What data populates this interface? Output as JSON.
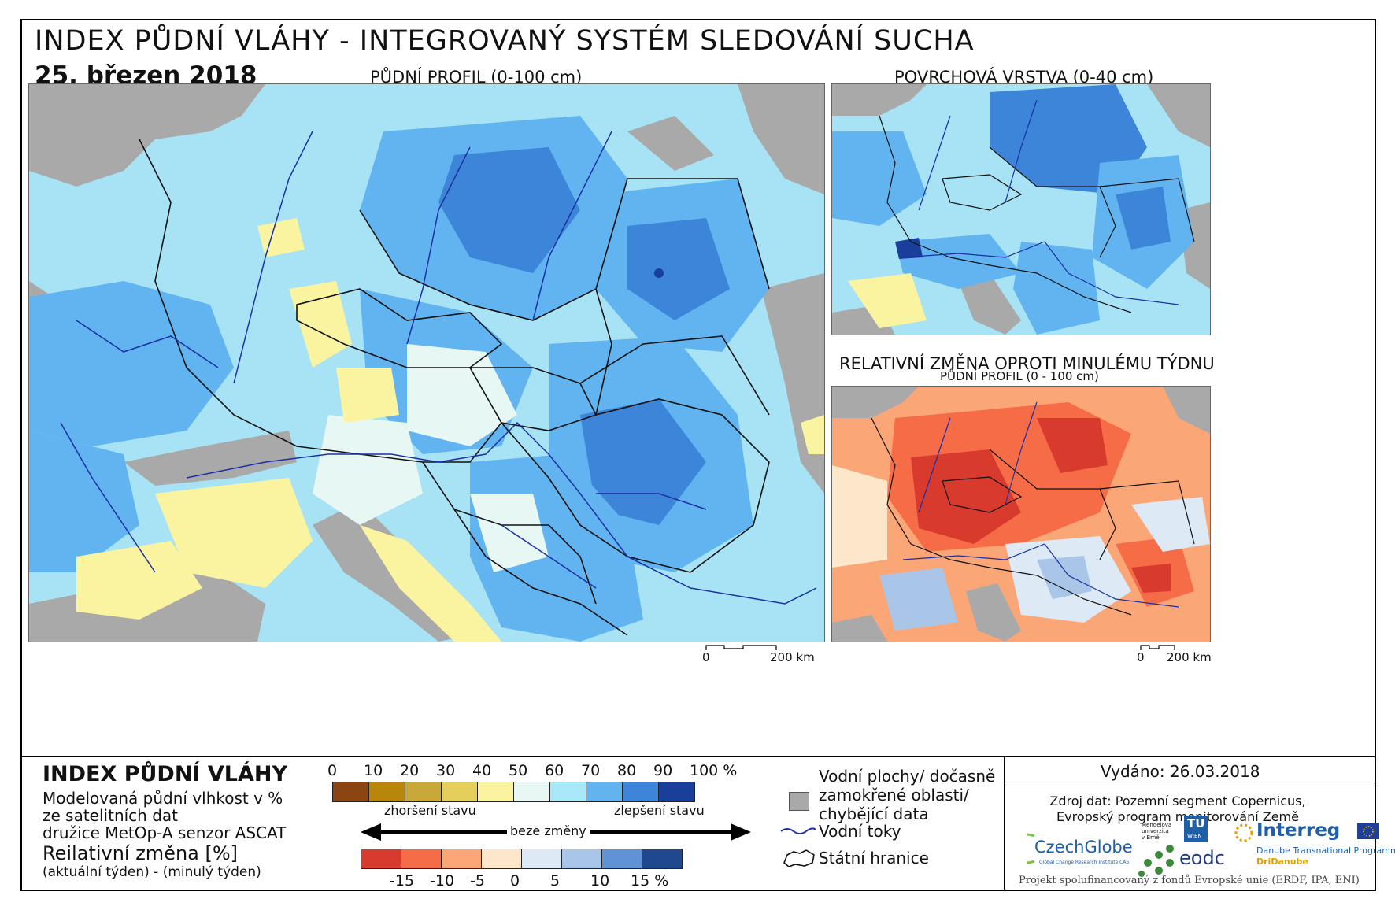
{
  "title": "INDEX PŮDNÍ VLÁHY - INTEGROVANÝ SYSTÉM SLEDOVÁNÍ SUCHA",
  "date": "25. březen 2018",
  "main_map": {
    "subtitle": "PŮDNÍ PROFIL (0-100 cm)",
    "scale_start": "0",
    "scale_end": "200 km"
  },
  "surface_map": {
    "subtitle": "POVRCHOVÁ VRSTVA (0-40 cm)"
  },
  "change_map": {
    "subtitle": "RELATIVNÍ ZMĚNA OPROTI MINULÉMU TÝDNU",
    "subtitle2": "PŮDNÍ PROFIL (0 - 100 cm)",
    "scale_start": "0",
    "scale_end": "200 km"
  },
  "legend": {
    "title": "INDEX PŮDNÍ VLÁHY",
    "desc1": "Modelovaná půdní vlhkost v %",
    "desc2": "ze satelitních dat",
    "desc3": "družice MetOp-A senzor ASCAT",
    "change_title": "Reilativní změna [%]",
    "change_desc": "(aktuální týden) - (minulý týden)",
    "index_ticks": [
      "0",
      "10",
      "20",
      "30",
      "40",
      "50",
      "60",
      "70",
      "80",
      "90",
      "100 %"
    ],
    "index_colors": [
      "#8b4513",
      "#b8860b",
      "#c8a838",
      "#e3cf5a",
      "#faf3a0",
      "#e6f7f4",
      "#a8e8f8",
      "#62b4f0",
      "#3c85d8",
      "#1a3f9a"
    ],
    "worse": "zhoršení stavu",
    "nochange": "beze změny",
    "better": "zlepšení stavu",
    "change_ticks": [
      "-15",
      "-10",
      "-5",
      "0",
      "5",
      "10",
      "15 %"
    ],
    "change_colors": [
      "#d93a2e",
      "#f56c47",
      "#fba677",
      "#fde7cb",
      "#dde9f4",
      "#a9c6e8",
      "#5f93d6",
      "#20488f"
    ],
    "water_label_1": "Vodní plochy/ dočasně",
    "water_label_2": "zamokřené oblasti/",
    "water_label_3": "chybějící data",
    "rivers_label": "Vodní toky",
    "borders_label": "Státní hranice"
  },
  "issued": "Vydáno: 26.03.2018",
  "source_1": "Zdroj dat: Pozemní segment Copernicus,",
  "source_2": "Evropský program monitorování Země",
  "logos": {
    "czechglobe": "CzechGlobe",
    "czechglobe_sub": "Global Change Research Institute CAS",
    "mendel_1": "Mendelova",
    "mendel_2": "univerzita",
    "mendel_3": "v Brně",
    "tu": "TU",
    "tu_sub": "WIEN",
    "eodc": "eodc",
    "interreg": "Interreg",
    "interreg_sub": "Danube Transnational Programme",
    "dridanube": "DriDanube"
  },
  "project_note": "Projekt spolufinancovaný z fondů Evropské unie (ERDF, IPA, ENI)"
}
